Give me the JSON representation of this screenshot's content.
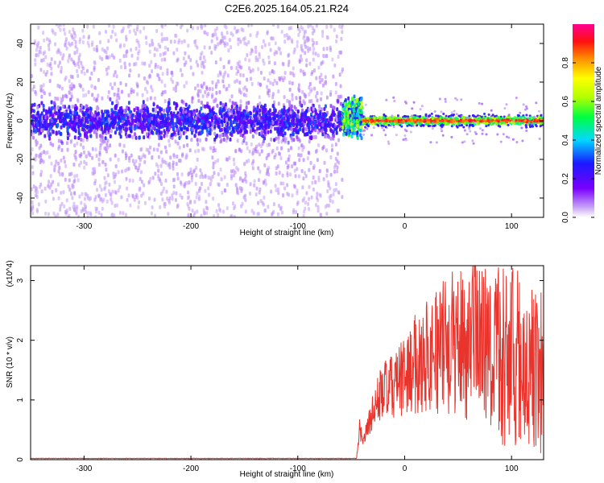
{
  "title": "C2E6.2025.164.05.21.R24",
  "chart_data": [
    {
      "type": "heatmap",
      "xlabel": "Height of straight line (km)",
      "ylabel": "Frequency (Hz)",
      "xlim": [
        -350,
        130
      ],
      "ylim": [
        -50,
        50
      ],
      "x_ticks": [
        -300,
        -200,
        -100,
        0,
        100
      ],
      "y_ticks": [
        -40,
        -20,
        0,
        20,
        40
      ],
      "colorbar": {
        "label": "Normalized spectral amplitude",
        "range": [
          0.0,
          1.0
        ],
        "ticks": [
          0.0,
          0.2,
          0.4,
          0.6,
          0.8
        ],
        "tick_labels": [
          "0.0",
          "0.2",
          "0.4",
          "0.6",
          "0.8"
        ],
        "colormap": "rainbow (violet to red)"
      },
      "regions": [
        {
          "x_range": [
            -350,
            -58
          ],
          "description": "broad diffuse scatter",
          "core_band_hz": [
            -8,
            8
          ],
          "core_amplitude": 0.15,
          "outer_amplitude": 0.05
        },
        {
          "x_range": [
            -58,
            -40
          ],
          "description": "transition",
          "core_band_hz": [
            -4,
            10
          ],
          "core_amplitude": 0.45
        },
        {
          "x_range": [
            -40,
            130
          ],
          "description": "narrow strong carrier line",
          "core_band_hz": [
            -4,
            4
          ],
          "center_hz": 0,
          "peak_amplitude": 0.95
        }
      ]
    },
    {
      "type": "line",
      "xlabel": "Height of straight line (km)",
      "ylabel": "SNR (10 * v/v)",
      "y_multiplier": "(x10^4)",
      "xlim": [
        -350,
        130
      ],
      "ylim": [
        0,
        3.25
      ],
      "x_ticks": [
        -300,
        -200,
        -100,
        0,
        100
      ],
      "y_ticks": [
        0,
        1,
        2,
        3
      ],
      "series": [
        {
          "color": "#e8342c",
          "x": [
            -350,
            -100,
            -45,
            -42,
            -40,
            -35,
            -30,
            -25,
            -20,
            -15,
            -10,
            -5,
            0,
            10,
            20,
            30,
            40,
            50,
            60,
            70,
            80,
            90,
            100,
            110,
            120,
            130
          ],
          "y": [
            0.02,
            0.02,
            0.02,
            0.6,
            0.3,
            0.5,
            0.8,
            1.0,
            1.2,
            1.15,
            1.25,
            1.3,
            1.4,
            1.6,
            1.75,
            1.85,
            1.9,
            2.0,
            1.95,
            2.0,
            1.9,
            1.8,
            1.8,
            1.7,
            1.65,
            1.5
          ]
        }
      ]
    }
  ]
}
